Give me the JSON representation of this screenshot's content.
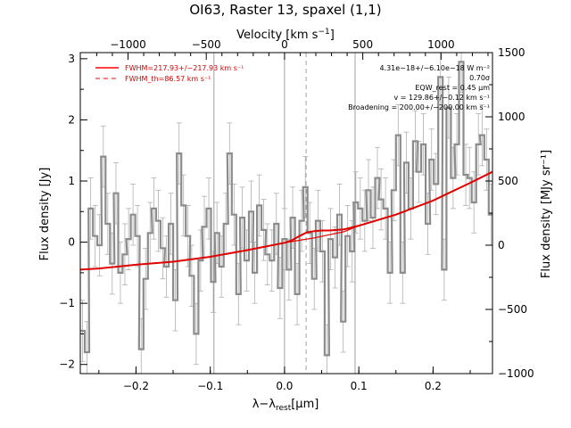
{
  "chart_data": {
    "type": "line",
    "title": "OI63, Raster 13, spaxel (1,1)",
    "xlabel": "λ−λrest [μm]",
    "xlabel_parts": {
      "lambda": "λ−λ",
      "sub": "rest",
      "unit": "[μm]"
    },
    "ylabel": "Flux density [Jy]",
    "ylabel_right": "Flux density [MJy sr⁻¹]",
    "xlabel_top": "Velocity [km s⁻¹]",
    "xlabel_top_parts": {
      "base": "Velocity [km s",
      "sup": "−1",
      "close": "]"
    },
    "xlim": [
      -0.275,
      0.28
    ],
    "ylim": [
      -2.15,
      3.1
    ],
    "ylim_right": [
      -1000,
      1500
    ],
    "vel_ticks": [
      -1000,
      -500,
      0,
      500,
      1000
    ],
    "vel_tick_labels": [
      "−1000",
      "−500",
      "0",
      "500",
      "1000"
    ],
    "x_ticks": [
      -0.2,
      -0.1,
      0.0,
      0.1,
      0.2
    ],
    "x_tick_labels": [
      "−0.2",
      "−0.1",
      "0.0",
      "0.1",
      "0.2"
    ],
    "y_ticks": [
      -2,
      -1,
      0,
      1,
      2,
      3
    ],
    "y_tick_labels": [
      "−2",
      "−1",
      "0",
      "1",
      "2",
      "3"
    ],
    "y_right_ticks": [
      -1000,
      -500,
      0,
      500,
      1000,
      1500
    ],
    "y_right_tick_labels": [
      "−1000",
      "−500",
      "0",
      "500",
      "1000",
      "1500"
    ],
    "vlines_solid": [
      -0.095,
      0.0,
      0.095
    ],
    "vlines_dashed": [
      0.029
    ],
    "legend": {
      "placement": "top-left",
      "entries": [
        {
          "label": "FWHM=217.93+/−217.93 km s⁻¹",
          "style": "solid",
          "color": "#ff0000"
        },
        {
          "label": "FWHM_th=86.57 km s⁻¹",
          "style": "dashed",
          "color": "#ff0000"
        }
      ]
    },
    "annotations": [
      "4.31e−18+/−6.10e−18 W m⁻²",
      "0.70σ",
      "EQW_rest = 0.45 μm",
      "v = 129.86+/−0.12 km s⁻¹",
      "Broadening = 200.00+/−200.00 km s⁻¹"
    ],
    "series": [
      {
        "name": "Flux density",
        "style": "steps",
        "color": "#999999",
        "x": [
          -0.272,
          -0.266,
          -0.261,
          -0.255,
          -0.249,
          -0.244,
          -0.238,
          -0.232,
          -0.227,
          -0.221,
          -0.215,
          -0.21,
          -0.204,
          -0.198,
          -0.193,
          -0.187,
          -0.181,
          -0.176,
          -0.17,
          -0.164,
          -0.159,
          -0.153,
          -0.147,
          -0.142,
          -0.136,
          -0.13,
          -0.125,
          -0.119,
          -0.113,
          -0.108,
          -0.102,
          -0.096,
          -0.091,
          -0.085,
          -0.079,
          -0.074,
          -0.068,
          -0.062,
          -0.057,
          -0.051,
          -0.045,
          -0.04,
          -0.034,
          -0.028,
          -0.023,
          -0.017,
          -0.011,
          -0.006,
          0.0,
          0.006,
          0.011,
          0.017,
          0.023,
          0.028,
          0.034,
          0.04,
          0.045,
          0.051,
          0.057,
          0.062,
          0.068,
          0.074,
          0.079,
          0.085,
          0.091,
          0.096,
          0.102,
          0.108,
          0.113,
          0.119,
          0.125,
          0.13,
          0.136,
          0.142,
          0.147,
          0.153,
          0.159,
          0.164,
          0.17,
          0.176,
          0.181,
          0.187,
          0.193,
          0.198,
          0.204,
          0.21,
          0.215,
          0.221,
          0.227,
          0.232,
          0.238,
          0.244,
          0.249,
          0.255,
          0.261,
          0.266,
          0.272,
          0.278
        ],
        "y": [
          -1.45,
          -1.8,
          0.55,
          0.1,
          -0.05,
          1.4,
          0.3,
          -0.35,
          0.8,
          -0.5,
          -0.2,
          0.05,
          0.45,
          0.1,
          -1.75,
          -0.6,
          0.15,
          0.55,
          0.35,
          -0.1,
          -0.4,
          0.3,
          -0.95,
          1.45,
          0.6,
          0.1,
          -0.55,
          -1.5,
          -0.3,
          0.25,
          0.55,
          -0.65,
          0.15,
          -0.4,
          0.3,
          1.45,
          0.45,
          -0.85,
          0.4,
          -0.3,
          0.5,
          -0.5,
          0.6,
          0.2,
          -0.2,
          -0.3,
          0.3,
          -0.75,
          0.05,
          -0.45,
          0.4,
          -0.85,
          0.35,
          0.9,
          0.15,
          -0.6,
          0.35,
          -0.15,
          -1.85,
          0.05,
          -0.25,
          0.45,
          -1.3,
          0.1,
          -0.15,
          0.65,
          0.55,
          0.35,
          0.85,
          0.4,
          1.05,
          0.7,
          0.55,
          -0.5,
          0.85,
          1.75,
          -0.5,
          1.3,
          0.55,
          1.65,
          1.15,
          1.6,
          0.3,
          1.35,
          0.95,
          2.7,
          -0.45,
          2.2,
          1.05,
          1.6,
          2.95,
          1.1,
          1.05,
          0.65,
          1.6,
          1.75,
          1.35,
          0.45
        ],
        "err": 0.5
      },
      {
        "name": "Fit",
        "style": "line",
        "color": "#e00000",
        "x": [
          -0.275,
          -0.25,
          -0.2,
          -0.15,
          -0.1,
          -0.05,
          0.0,
          0.01,
          0.02,
          0.03,
          0.04,
          0.05,
          0.06,
          0.07,
          0.08,
          0.1,
          0.15,
          0.2,
          0.25,
          0.28
        ],
        "y": [
          -0.45,
          -0.43,
          -0.37,
          -0.32,
          -0.24,
          -0.13,
          -0.01,
          0.03,
          0.1,
          0.16,
          0.18,
          0.19,
          0.19,
          0.2,
          0.21,
          0.27,
          0.45,
          0.68,
          0.97,
          1.15
        ]
      },
      {
        "name": "Continuum",
        "style": "line",
        "color": "#e00000",
        "x": [
          0.0,
          0.02,
          0.04,
          0.06,
          0.08,
          0.1
        ],
        "y": [
          -0.01,
          0.03,
          0.07,
          0.12,
          0.17,
          0.27
        ]
      }
    ]
  }
}
